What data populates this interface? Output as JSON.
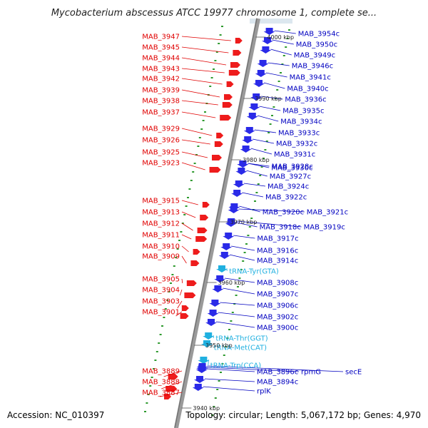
{
  "title": "Mycobacterium abscessus ATCC 19977 chromosome 1, complete se...",
  "accession": "Accession: NC_010397",
  "summary": "Topology: circular; Length: 5,067,172 bp; Genes: 4,970",
  "colors": {
    "left_label": "#e00000",
    "right_label": "#0000c0",
    "rna_label": "#20b0e0",
    "backbone": "#8c8c8c",
    "reverse_feature": "#2a2ae8",
    "forward_feature": "#ee1c1c",
    "tick": "#2e9a2e"
  },
  "scale_labels": [
    {
      "text": "4000 kbp",
      "row": 54
    },
    {
      "text": "3990 kbp",
      "row": 140
    },
    {
      "text": "3980 kbp",
      "row": 226
    },
    {
      "text": "3970 kbp",
      "row": 313
    },
    {
      "text": "3960 kbp",
      "row": 398
    },
    {
      "text": "3950 kbp",
      "row": 486
    },
    {
      "text": "3940 kbp",
      "row": 574
    }
  ],
  "left_genes": [
    {
      "label": "MAB_3947",
      "row": 51
    },
    {
      "label": "MAB_3945",
      "row": 66
    },
    {
      "label": "MAB_3944",
      "row": 81
    },
    {
      "label": "MAB_3943",
      "row": 96
    },
    {
      "label": "MAB_3942",
      "row": 110
    },
    {
      "label": "MAB_3939",
      "row": 126
    },
    {
      "label": "MAB_3938",
      "row": 141
    },
    {
      "label": "MAB_3937",
      "row": 157
    },
    {
      "label": "MAB_3929",
      "row": 180
    },
    {
      "label": "MAB_3926",
      "row": 196
    },
    {
      "label": "MAB_3925",
      "row": 213
    },
    {
      "label": "MAB_3923",
      "row": 228
    },
    {
      "label": "MAB_3915",
      "row": 281
    },
    {
      "label": "MAB_3913",
      "row": 297
    },
    {
      "label": "MAB_3912",
      "row": 313
    },
    {
      "label": "MAB_3911",
      "row": 329
    },
    {
      "label": "MAB_3910",
      "row": 345
    },
    {
      "label": "MAB_3909",
      "row": 359
    },
    {
      "label": "MAB_3905",
      "row": 391
    },
    {
      "label": "MAB_3904",
      "row": 406
    },
    {
      "label": "MAB_3903",
      "row": 422
    },
    {
      "label": "MAB_3901",
      "row": 437
    },
    {
      "label": "MAB_3889",
      "row": 520
    },
    {
      "label": "MAB_3888",
      "row": 535
    },
    {
      "label": "MAB_3887",
      "row": 550
    }
  ],
  "right_genes": [
    {
      "label": "MAB_3954c",
      "row": 47,
      "kind": "gene"
    },
    {
      "label": "MAB_3950c",
      "row": 62,
      "kind": "gene"
    },
    {
      "label": "MAB_3949c",
      "row": 77,
      "kind": "gene"
    },
    {
      "label": "MAB_3946c",
      "row": 92,
      "kind": "gene"
    },
    {
      "label": "MAB_3941c",
      "row": 108,
      "kind": "gene"
    },
    {
      "label": "MAB_3940c",
      "row": 124,
      "kind": "gene"
    },
    {
      "label": "MAB_3936c",
      "row": 139,
      "kind": "gene"
    },
    {
      "label": "MAB_3935c",
      "row": 155,
      "kind": "gene"
    },
    {
      "label": "MAB_3934c",
      "row": 170,
      "kind": "gene"
    },
    {
      "label": "MAB_3933c",
      "row": 186,
      "kind": "gene"
    },
    {
      "label": "MAB_3932c",
      "row": 201,
      "kind": "gene"
    },
    {
      "label": "MAB_3931c",
      "row": 216,
      "kind": "gene"
    },
    {
      "label": "MAB_3928c",
      "row": 233,
      "kind": "gene"
    },
    {
      "label": "MAB_3930c",
      "row": 235,
      "kind": "gene"
    },
    {
      "label": "MAB_3927c",
      "row": 247,
      "kind": "gene"
    },
    {
      "label": "MAB_3924c",
      "row": 261,
      "kind": "gene"
    },
    {
      "label": "MAB_3922c",
      "row": 276,
      "kind": "gene"
    },
    {
      "label": "MAB_3920c",
      "row": 297,
      "kind": "gene"
    },
    {
      "label": "MAB_3921c",
      "row": 297,
      "kind": "gene"
    },
    {
      "label": "MAB_3918c",
      "row": 318,
      "kind": "gene"
    },
    {
      "label": "MAB_3919c",
      "row": 318,
      "kind": "gene"
    },
    {
      "label": "MAB_3917c",
      "row": 334,
      "kind": "gene"
    },
    {
      "label": "MAB_3916c",
      "row": 351,
      "kind": "gene"
    },
    {
      "label": "MAB_3914c",
      "row": 365,
      "kind": "gene"
    },
    {
      "label": "tRNA-Tyr(GTA)",
      "row": 380,
      "kind": "rna"
    },
    {
      "label": "MAB_3908c",
      "row": 396,
      "kind": "gene"
    },
    {
      "label": "MAB_3907c",
      "row": 412,
      "kind": "gene"
    },
    {
      "label": "MAB_3906c",
      "row": 428,
      "kind": "gene"
    },
    {
      "label": "MAB_3902c",
      "row": 444,
      "kind": "gene"
    },
    {
      "label": "MAB_3900c",
      "row": 459,
      "kind": "gene"
    },
    {
      "label": "tRNA-Thr(GGT)",
      "row": 474,
      "kind": "rna"
    },
    {
      "label": "tRNA-Met(CAT)",
      "row": 487,
      "kind": "rna"
    },
    {
      "label": "tRNA-Trp(CCA)",
      "row": 512,
      "kind": "rna"
    },
    {
      "label": "MAB_3896c",
      "row": 521,
      "kind": "gene"
    },
    {
      "label": "rpmG",
      "row": 521,
      "kind": "gene"
    },
    {
      "label": "secE",
      "row": 521,
      "kind": "gene"
    },
    {
      "label": "MAB_3894c",
      "row": 535,
      "kind": "gene"
    },
    {
      "label": "rplK",
      "row": 548,
      "kind": "gene"
    }
  ]
}
